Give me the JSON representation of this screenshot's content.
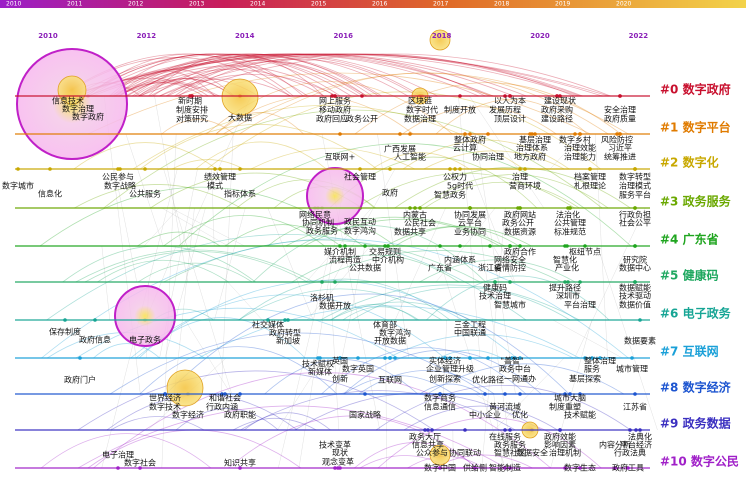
{
  "years_top": [
    "2010",
    "2011",
    "2012",
    "2013",
    "2014",
    "2015",
    "2016",
    "2017",
    "2018",
    "2019",
    "2020"
  ],
  "years_axis": [
    "2010",
    "2012",
    "2014",
    "2016",
    "2018",
    "2020",
    "2022"
  ],
  "clusters": [
    {
      "label": "#0 数字政府",
      "color": "#c8102e",
      "keywords": [
        "信息技术",
        "数字治理",
        "数字政府",
        "新时期",
        "制度安排",
        "对策研究",
        "大数据",
        "网上服务",
        "移动政府",
        "政府回应",
        "政务公开",
        "区块链",
        "数字时代",
        "数据治理",
        "制度开放",
        "以人为本",
        "发展历程",
        "顶层设计",
        "建设现状",
        "政府采购",
        "建设路径",
        "安全治理",
        "政府质量"
      ]
    },
    {
      "label": "#1 数字平台",
      "color": "#e07b00",
      "keywords": [
        "整体政府",
        "云计算",
        "广西发展",
        "人工智能",
        "协同治理",
        "基层治理",
        "数字乡村",
        "风险防控",
        "治理体系",
        "治理效能",
        "习近平",
        "地方政府",
        "治理能力",
        "统筹推进",
        "互联网+"
      ]
    },
    {
      "label": "#2 数字化",
      "color": "#c8a800",
      "keywords": [
        "数字城市",
        "信息化",
        "公民参与",
        "数字战略",
        "公共服务",
        "绩效管理",
        "模式",
        "指标体系",
        "社会管理",
        "公权力",
        "5g时代",
        "智慧政务",
        "档案管理",
        "数字转型",
        "营商环境",
        "札根理论",
        "治理模式",
        "治理",
        "服务平台",
        "政府"
      ]
    },
    {
      "label": "#3 政务服务",
      "color": "#6aa800",
      "keywords": [
        "网络民意",
        "协同机制",
        "政务服务",
        "政民互动",
        "数字鸿沟",
        "内蒙古",
        "公民社会",
        "数据共享",
        "协同发展",
        "云平台",
        "业务协同",
        "政府网站",
        "政务公开",
        "数据资源",
        "法治化",
        "公共管理",
        "标准规范",
        "行政负担",
        "社会公平"
      ]
    },
    {
      "label": "#4 广东省",
      "color": "#1fa51f",
      "keywords": [
        "媒介机制",
        "交易规则",
        "流程再造",
        "中介机构",
        "公共数据",
        "政府合作",
        "网络安全",
        "疫情防控",
        "枢纽节点",
        "智慧化",
        "产业化",
        "研究院",
        "数据中心",
        "内涵体系",
        "广东省",
        "浙江省"
      ]
    },
    {
      "label": "#5 健康码",
      "color": "#1fa860",
      "keywords": [
        "健康码",
        "技术治理",
        "智慧城市",
        "提升路径",
        "深圳市",
        "平台治理",
        "数据赋能",
        "技术驱动",
        "数据价值",
        "洛杉矶",
        "数据开放"
      ]
    },
    {
      "label": "#6 电子政务",
      "color": "#17a595",
      "keywords": [
        "保存制度",
        "政府信息",
        "电子政务",
        "社交媒体",
        "政府转型",
        "新加坡",
        "数据要素"
      ]
    },
    {
      "label": "#7 互联网",
      "color": "#1aa0d8",
      "keywords": [
        "政府门户",
        "体育部",
        "三金工程",
        "数字鸿沟",
        "中国联通",
        "开放数据",
        "技术赋权",
        "新媒体",
        "英国",
        "数字英国",
        "创新",
        "实体经济",
        "企业管理升级",
        "创新探索",
        "\"善智\"",
        "政务中台",
        "一网通办",
        "整体治理",
        "服务",
        "基层探索",
        "城市管理",
        "互联网",
        "优化路径"
      ]
    },
    {
      "label": "#8 数字经济",
      "color": "#1d55d0",
      "keywords": [
        "世界经济",
        "数字技术",
        "数字经济",
        "和谐社会",
        "行政内涵",
        "政府职能",
        "国家战略",
        "信息通信",
        "数字商务",
        "中小企业",
        "黄河流域",
        "优化",
        "城市大脑",
        "制度重塑",
        "技术赋能",
        "江苏省"
      ]
    },
    {
      "label": "#9 政务数据",
      "color": "#3a2fc0",
      "keywords": [
        "政务大厅",
        "信息共享",
        "公众参与",
        "协同联动",
        "在线服务",
        "政务服务",
        "数据安全",
        "政府效能",
        "影响因素",
        "法典化",
        "平台经济",
        "行政法典"
      ]
    },
    {
      "label": "#10 数字公民",
      "color": "#a020c8",
      "keywords": [
        "电子治理",
        "数字社会",
        "知识共享",
        "技术变革",
        "现状",
        "观念变革",
        "智慧社区",
        "数字中国",
        "供给侧",
        "智能制造",
        "治理机制",
        "内容分析",
        "政府工具",
        "数字生态"
      ]
    }
  ]
}
